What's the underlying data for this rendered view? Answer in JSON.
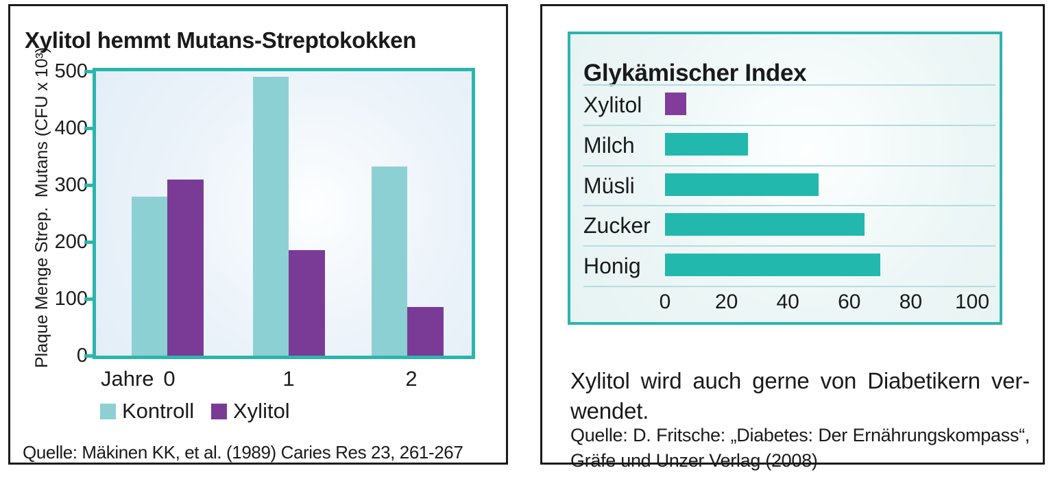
{
  "left_panel": {
    "title": "Xylitol hemmt Mutans-Streptokokken",
    "source": "Quelle: Mäkinen KK, et al. (1989) Caries Res 23, 261-267"
  },
  "right_panel": {
    "title": "Glykämischer Index",
    "body_line1": "Xylitol wird auch gerne von Diabetikern ver-",
    "body_line2": "wendet.",
    "source_line1": "Quelle: D. Fritsche: „Diabetes: Der Ernährungskompass“,",
    "source_line2": "Gräfe und Unzer Verlag (2008)"
  },
  "colors": {
    "ink": "#1a1a1a",
    "teal_border": "#2cb5ad",
    "kontroll_bar": "#8dd0d4",
    "xylitol_bar": "#7a3b97",
    "gi_teal_bar": "#22b8ad",
    "gi_purple_bar": "#823c9c",
    "row_separator": "#b4dcdf"
  },
  "chart_data": [
    {
      "type": "bar",
      "title": "Xylitol hemmt Mutans-Streptokokken",
      "categories": [
        "0",
        "1",
        "2"
      ],
      "x_axis_prefix_label": "Jahre",
      "series": [
        {
          "name": "Kontroll",
          "color": "#8dd0d4",
          "values": [
            280,
            490,
            333
          ]
        },
        {
          "name": "Xylitol",
          "color": "#7a3b97",
          "values": [
            310,
            185,
            86
          ]
        }
      ],
      "ylabel": "Plaque Menge Strep.  Mutans (CFU x 10³)",
      "yticks": [
        0,
        100,
        200,
        300,
        400,
        500
      ],
      "ylim": [
        0,
        500
      ],
      "grid": false,
      "legend_position": "bottom",
      "source": "Quelle: Mäkinen KK, et al. (1989) Caries Res 23, 261-267"
    },
    {
      "type": "bar",
      "orientation": "horizontal",
      "title": "Glykämischer Index",
      "categories": [
        "Xylitol",
        "Milch",
        "Müsli",
        "Zucker",
        "Honig"
      ],
      "values": [
        7,
        27,
        50,
        65,
        70
      ],
      "bar_colors": [
        "#823c9c",
        "#22b8ad",
        "#22b8ad",
        "#22b8ad",
        "#22b8ad"
      ],
      "xticks": [
        0,
        20,
        40,
        60,
        80,
        100
      ],
      "xlim": [
        0,
        100
      ],
      "grid": false
    }
  ]
}
